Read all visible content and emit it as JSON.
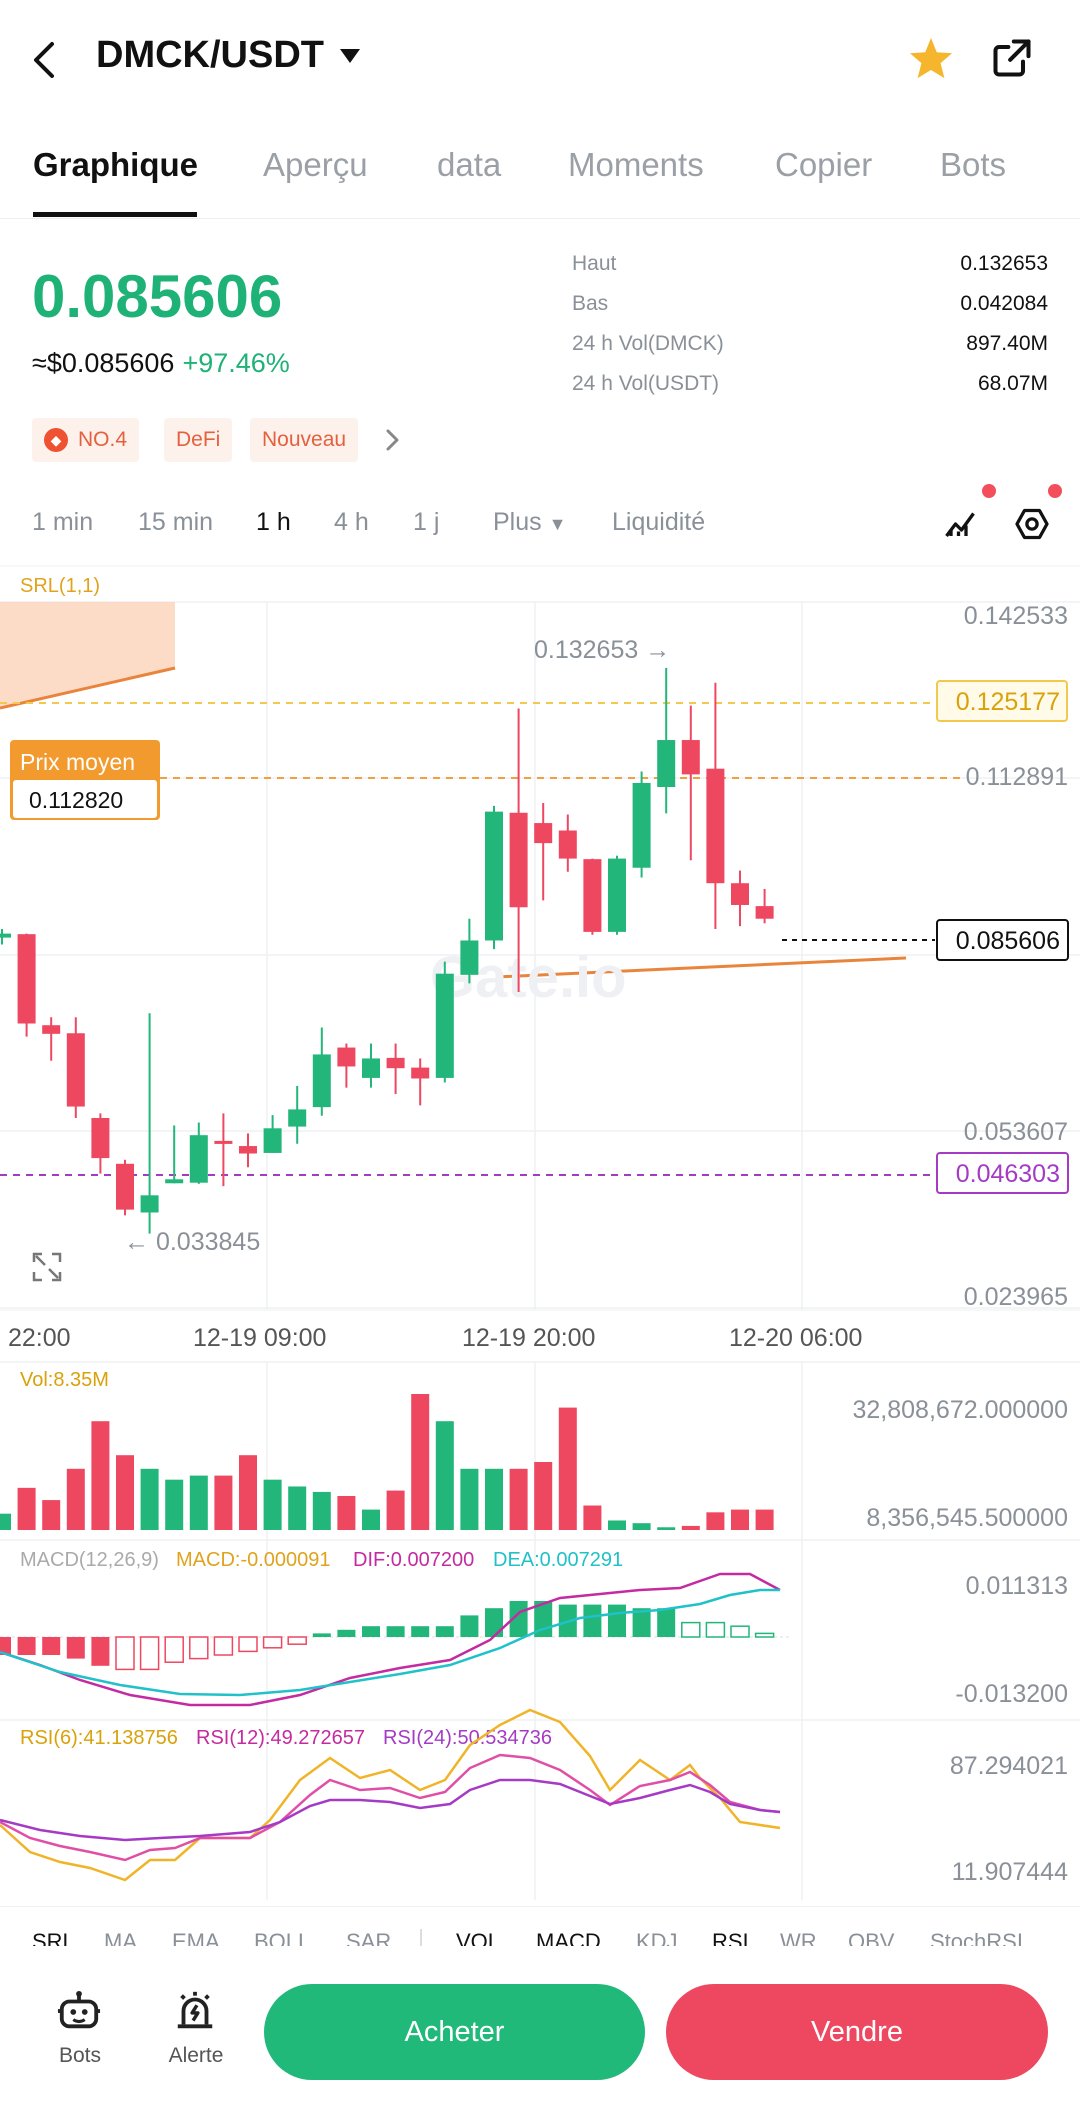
{
  "header": {
    "pair": "DMCK/USDT"
  },
  "tabs": [
    "Graphique",
    "Aperçu",
    "data",
    "Moments",
    "Copier",
    "Bots"
  ],
  "price": {
    "last": "0.085606",
    "usd": "≈$0.085606",
    "change": "+97.46%"
  },
  "stats": [
    {
      "label": "Haut",
      "value": "0.132653"
    },
    {
      "label": "Bas",
      "value": "0.042084"
    },
    {
      "label": "24 h Vol(DMCK)",
      "value": "897.40M"
    },
    {
      "label": "24 h Vol(USDT)",
      "value": "68.07M"
    }
  ],
  "tags": [
    "NO.4",
    "DeFi",
    "Nouveau"
  ],
  "intervals": [
    "1 min",
    "15 min",
    "1 h",
    "4 h",
    "1 j",
    "Plus",
    "Liquidité"
  ],
  "chart": {
    "srl_label": "SRL(1,1)",
    "avg_label": "Prix moyen",
    "avg_value": "0.112820",
    "high_marker": "0.132653 →",
    "low_marker": "← 0.033845",
    "price_axis": [
      "0.142533",
      "0.112891",
      "0.053607",
      "0.023965"
    ],
    "tag_yellow": "0.125177",
    "tag_current": "0.085606",
    "tag_purple": "0.046303",
    "time_axis": [
      "22:00",
      "12-19 09:00",
      "12-19 20:00",
      "12-20 06:00"
    ],
    "watermark": "Gate.io",
    "vol_label": "Vol:8.35M",
    "vol_axis": [
      "32,808,672.000000",
      "8,356,545.500000"
    ],
    "macd_title": "MACD(12,26,9)",
    "macd_val": "MACD:-0.000091",
    "dif_val": "DIF:0.007200",
    "dea_val": "DEA:0.007291",
    "macd_axis": [
      "0.011313",
      "-0.013200"
    ],
    "rsi6": "RSI(6):41.138756",
    "rsi12": "RSI(12):49.272657",
    "rsi24": "RSI(24):50.534736",
    "rsi_axis": [
      "87.294021",
      "11.907444"
    ]
  },
  "indicator_tabs": [
    "SRL",
    "MA",
    "EMA",
    "BOLL",
    "SAR",
    "VOL",
    "MACD",
    "KDJ",
    "RSI",
    "WR",
    "OBV",
    "StochRSI"
  ],
  "actions": {
    "bots": "Bots",
    "alert": "Alerte",
    "buy": "Acheter",
    "sell": "Vendre"
  },
  "colors": {
    "up": "#22b67a",
    "down": "#ee4760",
    "accent_orange": "#f0932b"
  },
  "chart_data": {
    "type": "candlestick",
    "candles": [
      {
        "o": 0.0855,
        "h": 0.087,
        "l": 0.0843,
        "c": 0.0862
      },
      {
        "o": 0.0861,
        "h": 0.0862,
        "l": 0.0682,
        "c": 0.0705
      },
      {
        "o": 0.0702,
        "h": 0.0716,
        "l": 0.064,
        "c": 0.0687
      },
      {
        "o": 0.0688,
        "h": 0.0716,
        "l": 0.054,
        "c": 0.056
      },
      {
        "o": 0.054,
        "h": 0.0548,
        "l": 0.0443,
        "c": 0.047
      },
      {
        "o": 0.046,
        "h": 0.0467,
        "l": 0.037,
        "c": 0.038
      },
      {
        "o": 0.0375,
        "h": 0.0723,
        "l": 0.0338,
        "c": 0.0405
      },
      {
        "o": 0.0426,
        "h": 0.0527,
        "l": 0.0426,
        "c": 0.0433
      },
      {
        "o": 0.0427,
        "h": 0.0532,
        "l": 0.0425,
        "c": 0.051
      },
      {
        "o": 0.05,
        "h": 0.0548,
        "l": 0.0421,
        "c": 0.0497
      },
      {
        "o": 0.0491,
        "h": 0.0513,
        "l": 0.0454,
        "c": 0.0478
      },
      {
        "o": 0.0479,
        "h": 0.0545,
        "l": 0.0479,
        "c": 0.0522
      },
      {
        "o": 0.0525,
        "h": 0.0596,
        "l": 0.0495,
        "c": 0.0555
      },
      {
        "o": 0.0559,
        "h": 0.0698,
        "l": 0.0544,
        "c": 0.0651
      },
      {
        "o": 0.0663,
        "h": 0.067,
        "l": 0.0593,
        "c": 0.063
      },
      {
        "o": 0.061,
        "h": 0.067,
        "l": 0.0593,
        "c": 0.0644
      },
      {
        "o": 0.0645,
        "h": 0.067,
        "l": 0.0582,
        "c": 0.0627
      },
      {
        "o": 0.0628,
        "h": 0.0644,
        "l": 0.0562,
        "c": 0.0609
      },
      {
        "o": 0.061,
        "h": 0.0813,
        "l": 0.0602,
        "c": 0.0792
      },
      {
        "o": 0.079,
        "h": 0.0888,
        "l": 0.0775,
        "c": 0.085
      },
      {
        "o": 0.085,
        "h": 0.1085,
        "l": 0.0835,
        "c": 0.1075
      },
      {
        "o": 0.1073,
        "h": 0.1255,
        "l": 0.076,
        "c": 0.0908
      },
      {
        "o": 0.1055,
        "h": 0.109,
        "l": 0.092,
        "c": 0.102
      },
      {
        "o": 0.1042,
        "h": 0.107,
        "l": 0.097,
        "c": 0.0993
      },
      {
        "o": 0.0992,
        "h": 0.0993,
        "l": 0.086,
        "c": 0.0865
      },
      {
        "o": 0.0865,
        "h": 0.0998,
        "l": 0.086,
        "c": 0.0993
      },
      {
        "o": 0.0977,
        "h": 0.1145,
        "l": 0.096,
        "c": 0.1125
      },
      {
        "o": 0.1118,
        "h": 0.1326,
        "l": 0.1072,
        "c": 0.12
      },
      {
        "o": 0.12,
        "h": 0.126,
        "l": 0.099,
        "c": 0.114
      },
      {
        "o": 0.115,
        "h": 0.13,
        "l": 0.087,
        "c": 0.095
      },
      {
        "o": 0.095,
        "h": 0.0972,
        "l": 0.0875,
        "c": 0.0912
      },
      {
        "o": 0.091,
        "h": 0.094,
        "l": 0.088,
        "c": 0.0888
      }
    ],
    "volume_levels": [
      0.12,
      0.31,
      0.22,
      0.45,
      0.8,
      0.55,
      0.45,
      0.37,
      0.4,
      0.4,
      0.55,
      0.37,
      0.32,
      0.28,
      0.25,
      0.15,
      0.29,
      1.0,
      0.8,
      0.45,
      0.45,
      0.45,
      0.5,
      0.9,
      0.18,
      0.07,
      0.05,
      0.02,
      0.03,
      0.13,
      0.15,
      0.15
    ],
    "ylim": [
      0.023965,
      0.142533
    ]
  }
}
